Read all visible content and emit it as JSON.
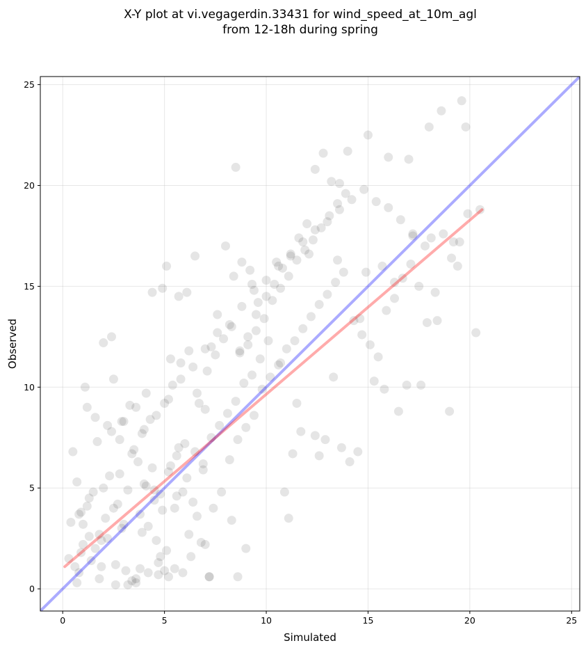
{
  "chart_data": {
    "type": "scatter",
    "title_lines": [
      "X-Y plot at vi.vegagerdin.33431 for wind_speed_at_10m_agl",
      "from 12-18h during spring"
    ],
    "xlabel": "Simulated",
    "ylabel": "Observed",
    "xlim": [
      -1.1,
      25.4
    ],
    "ylim": [
      -1.1,
      25.4
    ],
    "xticks": [
      0,
      5,
      10,
      15,
      20,
      25
    ],
    "yticks": [
      0,
      5,
      10,
      15,
      20,
      25
    ],
    "grid": true,
    "point_color": "#000000",
    "point_alpha": 0.1,
    "identity_line": {
      "x": [
        -1.1,
        25.4
      ],
      "y": [
        -1.1,
        25.4
      ],
      "color": "#0000ff",
      "alpha": 0.33
    },
    "fit_line": {
      "x": [
        0.1,
        20.6
      ],
      "y": [
        1.1,
        18.8
      ],
      "color": "#ff0000",
      "alpha": 0.33
    },
    "points": {
      "x": [
        0.3,
        0.6,
        0.8,
        1.0,
        0.9,
        1.4,
        0.7,
        1.2,
        1.8,
        2.1,
        2.6,
        3.1,
        3.6,
        0.5,
        1.7,
        2.4,
        2.9,
        3.3,
        1.1,
        2.0,
        2.7,
        3.8,
        4.2,
        4.6,
        5.1,
        5.5,
        5.9,
        6.3,
        6.8,
        7.2,
        4.0,
        4.4,
        4.8,
        5.2,
        5.6,
        6.0,
        6.4,
        3.5,
        3.9,
        4.3,
        5.0,
        5.4,
        5.8,
        6.2,
        6.6,
        7.0,
        2.8,
        3.2,
        3.7,
        4.1,
        4.5,
        4.9,
        5.3,
        5.7,
        6.1,
        6.5,
        6.9,
        7.3,
        7.7,
        8.1,
        8.5,
        8.9,
        9.3,
        9.7,
        7.4,
        7.8,
        8.2,
        8.6,
        9.0,
        9.4,
        9.8,
        10.2,
        10.6,
        11.0,
        11.4,
        11.8,
        12.2,
        12.6,
        13.0,
        13.4,
        13.8,
        6.7,
        7.1,
        7.5,
        7.9,
        8.3,
        8.7,
        9.1,
        9.5,
        9.9,
        10.3,
        10.7,
        11.1,
        11.5,
        11.9,
        12.3,
        12.7,
        13.1,
        13.5,
        13.9,
        14.3,
        14.7,
        15.1,
        15.5,
        15.9,
        16.3,
        16.7,
        17.1,
        17.5,
        17.9,
        18.3,
        18.7,
        19.1,
        19.5,
        19.9,
        20.3,
        20.5,
        19.8,
        19.6,
        18.6,
        18.0,
        17.0,
        16.0,
        15.0,
        14.0,
        13.6,
        13.2,
        12.8,
        12.4,
        12.0,
        11.6,
        11.2,
        10.8,
        10.4,
        10.0,
        9.6,
        9.2,
        8.8,
        8.4,
        8.0,
        7.6,
        0.4,
        0.8,
        1.3,
        1.6,
        1.9,
        2.2,
        2.5,
        2.3,
        1.5,
        1.0,
        0.7,
        1.8,
        2.6,
        3.4,
        4.7,
        5.0,
        5.2,
        3.0,
        3.6,
        4.1,
        2.0,
        2.4,
        1.2,
        1.6,
        2.2,
        2.8,
        3.4,
        4.0,
        4.6,
        5.2,
        5.8,
        6.4,
        7.0,
        7.6,
        8.2,
        8.8,
        9.4,
        10.0,
        10.6,
        11.2,
        11.8,
        12.4,
        13.0,
        13.6,
        14.2,
        14.8,
        15.4,
        16.0,
        16.6,
        17.2,
        17.8,
        2.5,
        3.0,
        4.4,
        4.9,
        5.1,
        5.3,
        5.7,
        6.1,
        6.5,
        7.3,
        8.5,
        9.3,
        10.5,
        12.1,
        13.5,
        14.9,
        15.7,
        16.3,
        17.2,
        18.1,
        19.2,
        19.4,
        12.4,
        12.9,
        13.7,
        8.3,
        7.0,
        6.2,
        3.8,
        5.5,
        14.5,
        15.3,
        16.9,
        10.9,
        11.3,
        11.7,
        8.6,
        9.0,
        7.2,
        4.7,
        4.2,
        3.6,
        3.2,
        6.9,
        5.9,
        4.5,
        6.6,
        5.6,
        4.8,
        3.9,
        2.9,
        1.9,
        1.3,
        0.9,
        8.7,
        9.1,
        9.5,
        10.1,
        10.7,
        11.5,
        13.3,
        14.1,
        14.6,
        15.8,
        16.5,
        17.6,
        18.4,
        19.0,
        11.1,
        12.6
      ],
      "y": [
        1.5,
        1.1,
        0.8,
        2.2,
        3.8,
        1.4,
        5.3,
        4.1,
        2.7,
        3.5,
        1.2,
        0.9,
        0.5,
        6.8,
        7.3,
        7.8,
        8.3,
        9.1,
        10.0,
        5.0,
        4.2,
        3.7,
        3.1,
        2.4,
        1.9,
        1.0,
        0.8,
        1.6,
        2.3,
        0.6,
        5.2,
        6.0,
        4.7,
        5.8,
        6.6,
        7.2,
        4.3,
        6.9,
        7.7,
        8.4,
        9.2,
        10.1,
        11.2,
        11.8,
        9.7,
        8.9,
        5.7,
        4.9,
        6.3,
        5.1,
        4.4,
        3.9,
        6.1,
        7.0,
        5.5,
        6.8,
        6.2,
        7.5,
        8.1,
        8.7,
        9.3,
        10.2,
        10.6,
        11.4,
        4.0,
        4.8,
        6.4,
        7.4,
        8.0,
        8.6,
        9.9,
        10.5,
        11.1,
        11.9,
        12.3,
        12.9,
        13.5,
        14.1,
        14.6,
        15.2,
        15.7,
        9.2,
        10.8,
        11.6,
        12.4,
        13.0,
        11.7,
        12.1,
        12.8,
        13.4,
        14.3,
        14.9,
        15.5,
        16.3,
        16.8,
        17.3,
        17.9,
        18.5,
        19.1,
        19.6,
        13.3,
        12.6,
        12.1,
        11.5,
        13.8,
        14.4,
        15.4,
        16.1,
        15.0,
        13.2,
        14.7,
        17.6,
        16.4,
        17.2,
        18.6,
        12.7,
        18.8,
        22.9,
        24.2,
        23.7,
        22.9,
        21.3,
        21.4,
        22.5,
        21.7,
        20.1,
        20.2,
        21.6,
        20.8,
        18.1,
        17.4,
        16.5,
        15.9,
        15.1,
        14.5,
        14.2,
        15.8,
        16.2,
        15.5,
        17.0,
        13.6,
        3.3,
        3.7,
        4.5,
        2.0,
        1.1,
        2.5,
        4.0,
        5.6,
        4.8,
        3.2,
        0.3,
        0.5,
        0.2,
        0.4,
        0.7,
        0.9,
        0.6,
        8.3,
        9.0,
        9.7,
        12.2,
        12.5,
        9.0,
        8.5,
        8.1,
        7.4,
        6.7,
        7.9,
        8.6,
        9.4,
        10.4,
        11.0,
        11.9,
        12.7,
        13.1,
        14.0,
        14.8,
        15.3,
        16.0,
        16.6,
        17.2,
        17.8,
        18.2,
        18.8,
        19.3,
        19.8,
        19.2,
        18.9,
        18.3,
        17.6,
        17.0,
        10.4,
        3.2,
        14.7,
        14.9,
        16.0,
        11.4,
        14.5,
        14.7,
        16.5,
        12.0,
        20.9,
        15.1,
        16.2,
        16.6,
        16.3,
        15.7,
        16.0,
        15.2,
        17.5,
        17.4,
        17.2,
        16.0,
        7.6,
        7.4,
        7.0,
        3.4,
        2.2,
        2.7,
        1.0,
        4.0,
        6.8,
        10.3,
        10.1,
        4.8,
        6.7,
        7.8,
        0.6,
        2.0,
        0.6,
        1.3,
        0.8,
        0.3,
        0.2,
        5.9,
        4.8,
        4.9,
        3.6,
        4.6,
        1.6,
        2.8,
        3.0,
        2.4,
        2.6,
        1.8,
        11.8,
        12.5,
        13.6,
        12.3,
        11.2,
        9.2,
        10.5,
        6.3,
        13.4,
        9.9,
        8.8,
        10.1,
        13.3,
        8.8,
        3.5,
        6.6
      ]
    }
  }
}
